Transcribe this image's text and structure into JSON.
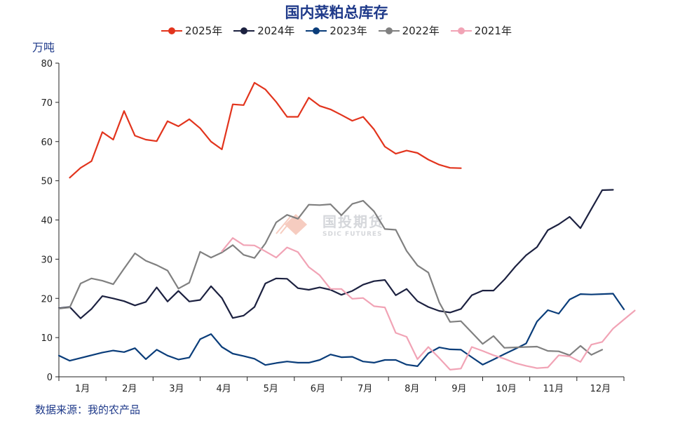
{
  "header": {
    "title": "国内菜粕总库存",
    "unit_label": "万吨",
    "source": "数据来源：我的农产品"
  },
  "watermark": {
    "main": "国投期货",
    "sub": "SDIC FUTURES"
  },
  "chart_data": {
    "type": "line",
    "title": "国内菜粕总库存",
    "ylabel": "万吨",
    "xlabel": "",
    "ylim": [
      0,
      80
    ],
    "yticks": [
      0,
      10,
      20,
      30,
      40,
      50,
      60,
      70,
      80
    ],
    "x_unit": "week",
    "x_range": [
      1,
      53
    ],
    "month_labels": [
      "1月",
      "2月",
      "3月",
      "4月",
      "5月",
      "6月",
      "7月",
      "8月",
      "9月",
      "10月",
      "11月",
      "12月"
    ],
    "legend_position": "top-center",
    "grid": false,
    "series": [
      {
        "name": "2025年",
        "color": "#e2341d",
        "start_week": 2,
        "values": [
          50.8,
          53.3,
          55.0,
          62.4,
          60.5,
          67.8,
          61.5,
          60.5,
          60.1,
          65.2,
          63.9,
          65.7,
          63.4,
          60.0,
          58.0,
          69.5,
          69.3,
          75.0,
          73.3,
          70.1,
          66.3,
          66.3,
          71.2,
          69.1,
          68.2,
          66.8,
          65.3,
          66.3,
          63.1,
          58.7,
          56.9,
          57.7,
          57.1,
          55.4,
          54.1,
          53.3,
          53.2
        ]
      },
      {
        "name": "2024年",
        "color": "#1c2140",
        "start_week": 1,
        "values": [
          17.5,
          17.8,
          14.9,
          17.3,
          20.6,
          20.0,
          19.3,
          18.2,
          19.1,
          22.8,
          19.2,
          21.9,
          19.2,
          19.6,
          23.1,
          20.1,
          15.0,
          15.6,
          17.8,
          23.8,
          25.1,
          25.0,
          22.6,
          22.2,
          22.8,
          22.2,
          20.9,
          21.9,
          23.5,
          24.4,
          24.7,
          20.8,
          22.4,
          19.3,
          17.8,
          16.8,
          16.4,
          17.3,
          20.8,
          22.0,
          22.0,
          24.8,
          28.1,
          31.0,
          33.1,
          37.4,
          38.9,
          40.8,
          37.9,
          42.8,
          47.6,
          47.7
        ]
      },
      {
        "name": "2023年",
        "color": "#0a3d7a",
        "start_week": 1,
        "values": [
          5.4,
          4.1,
          4.8,
          5.5,
          6.2,
          6.7,
          6.3,
          7.3,
          4.5,
          6.9,
          5.4,
          4.4,
          4.9,
          9.6,
          10.9,
          7.6,
          5.9,
          5.3,
          4.6,
          3.0,
          3.5,
          3.9,
          3.6,
          3.6,
          4.3,
          5.7,
          5.0,
          5.1,
          3.9,
          3.6,
          4.3,
          4.3,
          3.1,
          2.7,
          6.0,
          7.5,
          7.0,
          6.9,
          5.0,
          3.1,
          4.4,
          5.8,
          7.1,
          8.5,
          14.1,
          17.0,
          16.1,
          19.7,
          21.1,
          21.0,
          21.1,
          21.2,
          17.2
        ]
      },
      {
        "name": "2022年",
        "color": "#808080",
        "start_week": 1,
        "values": [
          17.4,
          17.7,
          23.8,
          25.1,
          24.5,
          23.6,
          27.6,
          31.5,
          29.6,
          28.5,
          27.1,
          22.5,
          24.0,
          31.9,
          30.4,
          31.7,
          33.6,
          31.1,
          30.3,
          34.0,
          39.4,
          41.3,
          40.3,
          43.9,
          43.8,
          44.0,
          41.2,
          44.1,
          44.9,
          42.2,
          37.7,
          37.5,
          32.1,
          28.4,
          26.6,
          19.0,
          14.0,
          14.2,
          11.3,
          8.4,
          10.4,
          7.4,
          7.5,
          7.6,
          7.7,
          6.6,
          6.5,
          5.5,
          7.9,
          5.6,
          6.9
        ]
      },
      {
        "name": "2021年",
        "color": "#f1a3b5",
        "start_week": 16,
        "values": [
          32.0,
          35.4,
          33.6,
          33.5,
          32.0,
          30.4,
          33.0,
          31.8,
          28.0,
          25.9,
          22.4,
          22.4,
          19.9,
          20.1,
          18.0,
          17.7,
          11.2,
          10.2,
          4.5,
          7.6,
          4.8,
          1.8,
          2.1,
          7.6,
          6.6,
          5.5,
          4.6,
          3.5,
          2.8,
          2.2,
          2.4,
          5.5,
          5.2,
          3.8,
          8.2,
          8.9,
          12.3,
          14.6,
          16.9
        ]
      }
    ]
  }
}
